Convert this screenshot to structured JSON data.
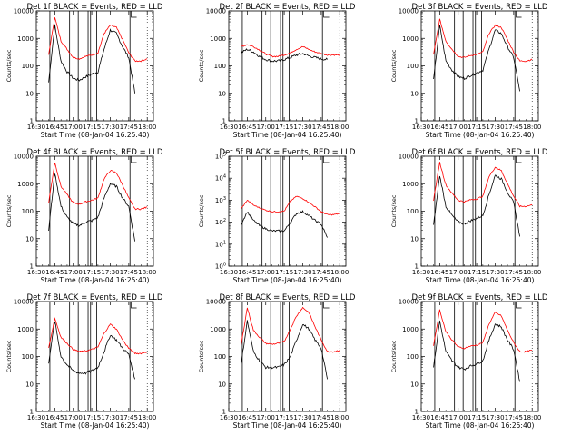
{
  "figure": {
    "xlabel": "Start Time (08-Jan-04 16:25:40)",
    "ylabel": "Counts/sec",
    "x_ticks": [
      "16:30",
      "16:45",
      "17:00",
      "17:15",
      "17:30",
      "17:45",
      "18:00"
    ],
    "y_ticks_decimal": [
      "1",
      "10",
      "100",
      "1000",
      "10000"
    ],
    "y_ticks_power": [
      "10^0",
      "10^1",
      "10^2",
      "10^3",
      "10^4",
      "10^5"
    ],
    "colors": {
      "events": "#000000",
      "lld": "#ff0000",
      "axes": "#000000",
      "background": "#ffffff"
    }
  },
  "chart_data": [
    {
      "type": "line",
      "title": "Det 1f BLACK = Events, RED = LLD",
      "xlabel": "Start Time (08-Jan-04 16:25:40)",
      "ylabel": "Counts/sec",
      "yscale": "log",
      "ylim": [
        1,
        10000
      ],
      "xlim": [
        "16:30",
        "18:05"
      ],
      "x": [
        "16:35",
        "16:40",
        "16:45",
        "16:50",
        "16:55",
        "17:00",
        "17:05",
        "17:10",
        "17:15",
        "17:20",
        "17:25",
        "17:30",
        "17:35",
        "17:40",
        "17:45",
        "17:50",
        "17:55",
        "18:00",
        "18:05"
      ],
      "series": [
        {
          "name": "BLACK = Events",
          "color": "#000000",
          "values": [
            null,
            25,
            3000,
            150,
            60,
            35,
            30,
            40,
            50,
            60,
            400,
            2000,
            1500,
            500,
            200,
            10,
            null,
            null,
            null
          ]
        },
        {
          "name": "RED = LLD",
          "color": "#ff0000",
          "values": [
            null,
            250,
            6000,
            800,
            400,
            200,
            180,
            220,
            250,
            300,
            1500,
            3000,
            2500,
            900,
            300,
            150,
            150,
            180,
            null
          ]
        }
      ],
      "vlines": [
        "16:41",
        "16:57",
        "17:04",
        "17:12",
        "17:14",
        "17:19",
        "17:46"
      ],
      "legend": "top-right"
    },
    {
      "type": "line",
      "title": "Det 2f BLACK = Events, RED = LLD",
      "xlabel": "Start Time (08-Jan-04 16:25:40)",
      "ylabel": "Counts/sec",
      "yscale": "log",
      "ylim": [
        1,
        10000
      ],
      "xlim": [
        "16:30",
        "18:05"
      ],
      "x": [
        "16:35",
        "16:40",
        "16:45",
        "16:50",
        "16:55",
        "17:00",
        "17:05",
        "17:10",
        "17:15",
        "17:20",
        "17:25",
        "17:30",
        "17:35",
        "17:40",
        "17:45",
        "17:50",
        "17:55",
        "18:00",
        "18:05"
      ],
      "series": [
        {
          "name": "BLACK = Events",
          "color": "#000000",
          "values": [
            null,
            300,
            400,
            320,
            220,
            170,
            150,
            150,
            170,
            200,
            250,
            280,
            230,
            200,
            180,
            170,
            null,
            null,
            null
          ]
        },
        {
          "name": "RED = LLD",
          "color": "#ff0000",
          "values": [
            null,
            500,
            600,
            500,
            380,
            270,
            220,
            220,
            250,
            300,
            400,
            500,
            400,
            320,
            280,
            250,
            250,
            250,
            null
          ]
        }
      ],
      "vlines": [
        "16:41",
        "16:57",
        "17:04",
        "17:12",
        "17:14",
        "17:19",
        "17:46"
      ],
      "legend": "top-right"
    },
    {
      "type": "line",
      "title": "Det 3f BLACK = Events, RED = LLD",
      "xlabel": "Start Time (08-Jan-04 16:25:40)",
      "ylabel": "Counts/sec",
      "yscale": "log",
      "ylim": [
        1,
        10000
      ],
      "xlim": [
        "16:30",
        "18:05"
      ],
      "x": [
        "16:35",
        "16:40",
        "16:45",
        "16:50",
        "16:55",
        "17:00",
        "17:05",
        "17:10",
        "17:15",
        "17:20",
        "17:25",
        "17:30",
        "17:35",
        "17:40",
        "17:45",
        "17:50",
        "17:55",
        "18:00",
        "18:05"
      ],
      "series": [
        {
          "name": "BLACK = Events",
          "color": "#000000",
          "values": [
            null,
            30,
            3000,
            150,
            70,
            40,
            35,
            45,
            55,
            70,
            400,
            2000,
            1500,
            500,
            200,
            12,
            null,
            null,
            null
          ]
        },
        {
          "name": "RED = LLD",
          "color": "#ff0000",
          "values": [
            null,
            250,
            5000,
            800,
            400,
            220,
            200,
            240,
            260,
            320,
            1500,
            3000,
            2500,
            900,
            320,
            150,
            150,
            170,
            null
          ]
        }
      ],
      "vlines": [
        "16:41",
        "16:57",
        "17:04",
        "17:12",
        "17:14",
        "17:19",
        "17:46"
      ],
      "legend": "top-right"
    },
    {
      "type": "line",
      "title": "Det 4f BLACK = Events, RED = LLD",
      "xlabel": "Start Time (08-Jan-04 16:25:40)",
      "ylabel": "Counts/sec",
      "yscale": "log",
      "ylim": [
        1,
        10000
      ],
      "xlim": [
        "16:30",
        "18:05"
      ],
      "x": [
        "16:35",
        "16:40",
        "16:45",
        "16:50",
        "16:55",
        "17:00",
        "17:05",
        "17:10",
        "17:15",
        "17:20",
        "17:25",
        "17:30",
        "17:35",
        "17:40",
        "17:45",
        "17:50",
        "17:55",
        "18:00",
        "18:05"
      ],
      "series": [
        {
          "name": "BLACK = Events",
          "color": "#000000",
          "values": [
            null,
            20,
            2500,
            150,
            60,
            35,
            30,
            40,
            45,
            60,
            300,
            1000,
            800,
            300,
            150,
            8,
            null,
            null,
            null
          ]
        },
        {
          "name": "RED = LLD",
          "color": "#ff0000",
          "values": [
            null,
            200,
            6000,
            800,
            400,
            200,
            180,
            220,
            250,
            300,
            1500,
            3000,
            2500,
            900,
            300,
            120,
            120,
            140,
            null
          ]
        }
      ],
      "vlines": [
        "16:41",
        "16:57",
        "17:04",
        "17:12",
        "17:14",
        "17:19",
        "17:46"
      ],
      "legend": "top-right"
    },
    {
      "type": "line",
      "title": "Det 5f BLACK = Events, RED = LLD",
      "xlabel": "Start Time (08-Jan-04 16:25:40)",
      "ylabel": "Counts/sec",
      "yscale": "log",
      "ylim": [
        1,
        100000
      ],
      "xlim": [
        "16:30",
        "18:05"
      ],
      "x": [
        "16:35",
        "16:40",
        "16:45",
        "16:50",
        "16:55",
        "17:00",
        "17:05",
        "17:10",
        "17:15",
        "17:20",
        "17:25",
        "17:30",
        "17:35",
        "17:40",
        "17:45",
        "17:50",
        "17:55",
        "18:00",
        "18:05"
      ],
      "series": [
        {
          "name": "BLACK = Events",
          "color": "#000000",
          "values": [
            null,
            80,
            300,
            120,
            70,
            50,
            40,
            40,
            40,
            100,
            250,
            300,
            200,
            120,
            80,
            20,
            null,
            null,
            null
          ]
        },
        {
          "name": "RED = LLD",
          "color": "#ff0000",
          "values": [
            null,
            400,
            1000,
            600,
            450,
            350,
            300,
            300,
            320,
            900,
            1500,
            1200,
            800,
            500,
            300,
            220,
            220,
            250,
            null
          ]
        }
      ],
      "vlines": [
        "16:41",
        "16:57",
        "17:04",
        "17:12",
        "17:14",
        "17:19",
        "17:46"
      ],
      "legend": "top-right"
    },
    {
      "type": "line",
      "title": "Det 6f BLACK = Events, RED = LLD",
      "xlabel": "Start Time (08-Jan-04 16:25:40)",
      "ylabel": "Counts/sec",
      "yscale": "log",
      "ylim": [
        1,
        10000
      ],
      "xlim": [
        "16:30",
        "18:05"
      ],
      "x": [
        "16:35",
        "16:40",
        "16:45",
        "16:50",
        "16:55",
        "17:00",
        "17:05",
        "17:10",
        "17:15",
        "17:20",
        "17:25",
        "17:30",
        "17:35",
        "17:40",
        "17:45",
        "17:50",
        "17:55",
        "18:00",
        "18:05"
      ],
      "series": [
        {
          "name": "BLACK = Events",
          "color": "#000000",
          "values": [
            null,
            30,
            2000,
            150,
            70,
            40,
            35,
            45,
            55,
            70,
            400,
            2000,
            1500,
            500,
            200,
            12,
            null,
            null,
            null
          ]
        },
        {
          "name": "RED = LLD",
          "color": "#ff0000",
          "values": [
            null,
            250,
            6000,
            900,
            450,
            250,
            220,
            260,
            280,
            350,
            1800,
            4000,
            3000,
            1000,
            350,
            150,
            150,
            170,
            null
          ]
        }
      ],
      "vlines": [
        "16:41",
        "16:57",
        "17:04",
        "17:12",
        "17:14",
        "17:19",
        "17:46"
      ],
      "legend": "top-right"
    },
    {
      "type": "line",
      "title": "Det 7f BLACK = Events, RED = LLD",
      "xlabel": "Start Time (08-Jan-04 16:25:40)",
      "ylabel": "Counts/sec",
      "yscale": "log",
      "ylim": [
        1,
        10000
      ],
      "xlim": [
        "16:30",
        "18:05"
      ],
      "x": [
        "16:35",
        "16:40",
        "16:45",
        "16:50",
        "16:55",
        "17:00",
        "17:05",
        "17:10",
        "17:15",
        "17:20",
        "17:25",
        "17:30",
        "17:35",
        "17:40",
        "17:45",
        "17:50",
        "17:55",
        "18:00",
        "18:05"
      ],
      "series": [
        {
          "name": "BLACK = Events",
          "color": "#000000",
          "values": [
            null,
            60,
            2000,
            100,
            50,
            30,
            25,
            25,
            30,
            40,
            150,
            600,
            400,
            200,
            120,
            15,
            null,
            null,
            null
          ]
        },
        {
          "name": "RED = LLD",
          "color": "#ff0000",
          "values": [
            null,
            200,
            2500,
            500,
            300,
            180,
            150,
            160,
            180,
            220,
            700,
            1500,
            1000,
            400,
            200,
            130,
            130,
            150,
            null
          ]
        }
      ],
      "vlines": [
        "16:41",
        "16:57",
        "17:04",
        "17:12",
        "17:14",
        "17:19",
        "17:46"
      ],
      "legend": "top-right"
    },
    {
      "type": "line",
      "title": "Det 8f BLACK = Events, RED = LLD",
      "xlabel": "Start Time (08-Jan-04 16:25:40)",
      "ylabel": "Counts/sec",
      "yscale": "log",
      "ylim": [
        1,
        10000
      ],
      "xlim": [
        "16:30",
        "18:05"
      ],
      "x": [
        "16:35",
        "16:40",
        "16:45",
        "16:50",
        "16:55",
        "17:00",
        "17:05",
        "17:10",
        "17:15",
        "17:20",
        "17:25",
        "17:30",
        "17:35",
        "17:40",
        "17:45",
        "17:50",
        "17:55",
        "18:00",
        "18:05"
      ],
      "series": [
        {
          "name": "BLACK = Events",
          "color": "#000000",
          "values": [
            null,
            50,
            2000,
            150,
            70,
            40,
            40,
            40,
            50,
            100,
            400,
            1500,
            1000,
            400,
            200,
            15,
            null,
            null,
            null
          ]
        },
        {
          "name": "RED = LLD",
          "color": "#ff0000",
          "values": [
            null,
            250,
            6000,
            900,
            500,
            300,
            280,
            300,
            350,
            1000,
            3000,
            6000,
            4000,
            1200,
            400,
            150,
            150,
            170,
            null
          ]
        }
      ],
      "vlines": [
        "16:41",
        "16:57",
        "17:04",
        "17:12",
        "17:14",
        "17:19",
        "17:46"
      ],
      "legend": "top-right"
    },
    {
      "type": "line",
      "title": "Det 9f BLACK = Events, RED = LLD",
      "xlabel": "Start Time (08-Jan-04 16:25:40)",
      "ylabel": "Counts/sec",
      "yscale": "log",
      "ylim": [
        1,
        10000
      ],
      "xlim": [
        "16:30",
        "18:05"
      ],
      "x": [
        "16:35",
        "16:40",
        "16:45",
        "16:50",
        "16:55",
        "17:00",
        "17:05",
        "17:10",
        "17:15",
        "17:20",
        "17:25",
        "17:30",
        "17:35",
        "17:40",
        "17:45",
        "17:50",
        "17:55",
        "18:00",
        "18:05"
      ],
      "series": [
        {
          "name": "BLACK = Events",
          "color": "#000000",
          "values": [
            null,
            40,
            2000,
            150,
            70,
            40,
            35,
            45,
            55,
            70,
            400,
            1500,
            1200,
            400,
            180,
            12,
            null,
            null,
            null
          ]
        },
        {
          "name": "RED = LLD",
          "color": "#ff0000",
          "values": [
            null,
            250,
            5000,
            800,
            400,
            220,
            200,
            240,
            260,
            320,
            1500,
            4000,
            3000,
            900,
            320,
            150,
            150,
            170,
            null
          ]
        }
      ],
      "vlines": [
        "16:41",
        "16:57",
        "17:04",
        "17:12",
        "17:14",
        "17:19",
        "17:46"
      ],
      "legend": "top-right"
    }
  ]
}
